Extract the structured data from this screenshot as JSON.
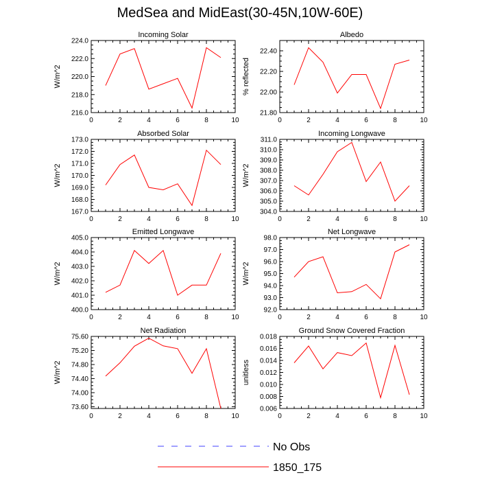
{
  "title": "MedSea and MidEast(30-45N,10W-60E)",
  "colors": {
    "model": "#ff0000",
    "obs": "#4040ff",
    "axis": "#000000"
  },
  "legend": [
    {
      "label": "No Obs",
      "style": "dashed",
      "color": "#4040ff"
    },
    {
      "label": "1850_175",
      "style": "solid",
      "color": "#ff0000"
    }
  ],
  "chart_data": [
    {
      "type": "line",
      "title": "Incoming Solar",
      "ylabel": "W/m^2",
      "x": [
        1,
        2,
        3,
        4,
        5,
        6,
        7,
        8,
        9
      ],
      "xlim": [
        0,
        10
      ],
      "xticks": [
        0,
        2,
        4,
        6,
        8,
        10
      ],
      "ylim": [
        216,
        224
      ],
      "yticks": [
        "216.0",
        "218.0",
        "220.0",
        "222.0",
        "224.0"
      ],
      "series": [
        {
          "values": [
            219.0,
            222.5,
            223.1,
            218.6,
            219.2,
            219.8,
            216.5,
            223.2,
            222.1
          ]
        }
      ]
    },
    {
      "type": "line",
      "title": "Albedo",
      "ylabel": "% reflected",
      "x": [
        1,
        2,
        3,
        4,
        5,
        6,
        7,
        8,
        9
      ],
      "xlim": [
        0,
        10
      ],
      "xticks": [
        0,
        2,
        4,
        6,
        8,
        10
      ],
      "ylim": [
        21.8,
        22.5
      ],
      "yticks": [
        "21.80",
        "22.00",
        "22.20",
        "22.40"
      ],
      "series": [
        {
          "values": [
            22.07,
            22.43,
            22.29,
            21.99,
            22.17,
            22.17,
            21.84,
            22.27,
            22.31
          ]
        }
      ]
    },
    {
      "type": "line",
      "title": "Absorbed Solar",
      "ylabel": "W/m^2",
      "x": [
        1,
        2,
        3,
        4,
        5,
        6,
        7,
        8,
        9
      ],
      "xlim": [
        0,
        10
      ],
      "xticks": [
        0,
        2,
        4,
        6,
        8,
        10
      ],
      "ylim": [
        167,
        173
      ],
      "yticks": [
        "167.0",
        "168.0",
        "169.0",
        "170.0",
        "171.0",
        "172.0",
        "173.0"
      ],
      "series": [
        {
          "values": [
            169.2,
            170.9,
            171.7,
            169.0,
            168.8,
            169.3,
            167.5,
            172.1,
            170.9
          ]
        }
      ]
    },
    {
      "type": "line",
      "title": "Incoming Longwave",
      "ylabel": "W/m^2",
      "x": [
        1,
        2,
        3,
        4,
        5,
        6,
        7,
        8,
        9
      ],
      "xlim": [
        0,
        10
      ],
      "xticks": [
        0,
        2,
        4,
        6,
        8,
        10
      ],
      "ylim": [
        304,
        311
      ],
      "yticks": [
        "304.0",
        "305.0",
        "306.0",
        "307.0",
        "308.0",
        "309.0",
        "310.0",
        "311.0"
      ],
      "series": [
        {
          "values": [
            306.5,
            305.6,
            307.6,
            309.8,
            310.7,
            306.9,
            308.8,
            305.0,
            306.5
          ]
        }
      ]
    },
    {
      "type": "line",
      "title": "Emitted Longwave",
      "ylabel": "W/m^2",
      "x": [
        1,
        2,
        3,
        4,
        5,
        6,
        7,
        8,
        9
      ],
      "xlim": [
        0,
        10
      ],
      "xticks": [
        0,
        2,
        4,
        6,
        8,
        10
      ],
      "ylim": [
        400,
        405
      ],
      "yticks": [
        "400.0",
        "401.0",
        "402.0",
        "403.0",
        "404.0",
        "405.0"
      ],
      "series": [
        {
          "values": [
            401.2,
            401.7,
            404.1,
            403.2,
            404.1,
            401.0,
            401.7,
            401.7,
            403.9
          ]
        }
      ]
    },
    {
      "type": "line",
      "title": "Net Longwave",
      "ylabel": "W/m^2",
      "x": [
        1,
        2,
        3,
        4,
        5,
        6,
        7,
        8,
        9
      ],
      "xlim": [
        0,
        10
      ],
      "xticks": [
        0,
        2,
        4,
        6,
        8,
        10
      ],
      "ylim": [
        92,
        98
      ],
      "yticks": [
        "92.0",
        "93.0",
        "94.0",
        "95.0",
        "96.0",
        "97.0",
        "98.0"
      ],
      "series": [
        {
          "values": [
            94.7,
            96.0,
            96.4,
            93.4,
            93.5,
            94.1,
            92.9,
            96.8,
            97.4
          ]
        }
      ]
    },
    {
      "type": "line",
      "title": "Net Radiation",
      "ylabel": "W/m^2",
      "x": [
        1,
        2,
        3,
        4,
        5,
        6,
        7,
        8,
        9
      ],
      "xlim": [
        0,
        10
      ],
      "xticks": [
        0,
        2,
        4,
        6,
        8,
        10
      ],
      "ylim": [
        73.55,
        75.6
      ],
      "yticks": [
        "73.60",
        "74.00",
        "74.40",
        "74.80",
        "75.20",
        "75.60"
      ],
      "series": [
        {
          "values": [
            74.47,
            74.85,
            75.32,
            75.55,
            75.33,
            75.25,
            74.55,
            75.25,
            73.55
          ]
        }
      ]
    },
    {
      "type": "line",
      "title": "Ground Snow Covered Fraction",
      "ylabel": "unitless",
      "x": [
        1,
        2,
        3,
        4,
        5,
        6,
        7,
        8,
        9
      ],
      "xlim": [
        0,
        10
      ],
      "xticks": [
        0,
        2,
        4,
        6,
        8,
        10
      ],
      "ylim": [
        0.006,
        0.018
      ],
      "yticks": [
        "0.006",
        "0.008",
        "0.010",
        "0.012",
        "0.014",
        "0.016",
        "0.018"
      ],
      "series": [
        {
          "values": [
            0.0136,
            0.0164,
            0.0126,
            0.0153,
            0.0148,
            0.0169,
            0.0078,
            0.0165,
            0.0083
          ]
        }
      ]
    }
  ]
}
